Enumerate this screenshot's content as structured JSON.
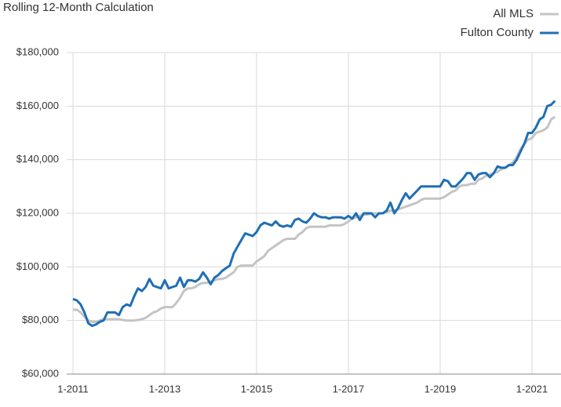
{
  "chart_data": {
    "type": "line",
    "title": "Rolling 12-Month Calculation",
    "categories": [
      "1-2011",
      null,
      null,
      null,
      null,
      null,
      null,
      null,
      null,
      null,
      null,
      null,
      null,
      null,
      null,
      null,
      null,
      null,
      null,
      null,
      null,
      null,
      null,
      null,
      "1-2013",
      null,
      null,
      null,
      null,
      null,
      null,
      null,
      null,
      null,
      null,
      null,
      null,
      null,
      null,
      null,
      null,
      null,
      null,
      null,
      null,
      null,
      null,
      null,
      "1-2015",
      null,
      null,
      null,
      null,
      null,
      null,
      null,
      null,
      null,
      null,
      null,
      null,
      null,
      null,
      null,
      null,
      null,
      null,
      null,
      null,
      null,
      null,
      null,
      "1-2017",
      null,
      null,
      null,
      null,
      null,
      null,
      null,
      null,
      null,
      null,
      null,
      null,
      null,
      null,
      null,
      null,
      null,
      null,
      null,
      null,
      null,
      null,
      null,
      "1-2019",
      null,
      null,
      null,
      null,
      null,
      null,
      null,
      null,
      null,
      null,
      null,
      null,
      null,
      null,
      null,
      null,
      null,
      null,
      null,
      null,
      null,
      null,
      null,
      "1-2021",
      null,
      null,
      null,
      null,
      null,
      null
    ],
    "series": [
      {
        "name": "All MLS",
        "color": "#c4c4c4",
        "values": [
          84000,
          84000,
          83000,
          81500,
          80000,
          79500,
          79500,
          80000,
          80500,
          80500,
          80500,
          80500,
          80500,
          80200,
          80000,
          80000,
          80000,
          80200,
          80500,
          81000,
          82000,
          83000,
          83500,
          84500,
          85000,
          85000,
          85000,
          86500,
          88500,
          91000,
          92000,
          92000,
          92500,
          93500,
          94000,
          94000,
          94500,
          95000,
          95500,
          95500,
          96000,
          97000,
          98000,
          100000,
          100500,
          100500,
          100500,
          100500,
          102000,
          103000,
          104000,
          106000,
          107000,
          108000,
          109000,
          110000,
          110500,
          110500,
          110500,
          112000,
          113000,
          114500,
          115000,
          115000,
          115000,
          115000,
          115000,
          115500,
          115500,
          115500,
          115500,
          116000,
          117000,
          118000,
          118500,
          119000,
          119500,
          119500,
          120000,
          120000,
          120000,
          120000,
          120500,
          121000,
          121000,
          121500,
          122000,
          122500,
          123000,
          123500,
          124000,
          125000,
          125500,
          125500,
          125500,
          125500,
          125500,
          126000,
          127000,
          128000,
          128500,
          130000,
          130500,
          130500,
          131000,
          131000,
          132500,
          133000,
          134000,
          134500,
          135000,
          135500,
          136500,
          137000,
          138000,
          139000,
          141000,
          144000,
          146000,
          147500,
          148000,
          150000,
          150500,
          151000,
          152000,
          155000,
          156000
        ]
      },
      {
        "name": "Fulton County",
        "color": "#1f6fb4",
        "values": [
          88000,
          87500,
          86000,
          83000,
          79000,
          78000,
          78500,
          79500,
          80000,
          83000,
          83000,
          83000,
          82000,
          85000,
          86000,
          85500,
          89000,
          92000,
          91000,
          92500,
          95500,
          93000,
          92500,
          92000,
          95000,
          92000,
          92500,
          93000,
          96000,
          92500,
          95000,
          95000,
          94500,
          95500,
          98000,
          96000,
          93500,
          96000,
          97000,
          98500,
          99500,
          100500,
          105000,
          107500,
          110000,
          112500,
          112000,
          111500,
          113000,
          115500,
          116500,
          116000,
          115500,
          117000,
          115500,
          115000,
          115500,
          115000,
          117500,
          118000,
          117000,
          116500,
          118000,
          120000,
          119000,
          118500,
          118500,
          118000,
          118500,
          118500,
          118500,
          118000,
          119000,
          118000,
          120000,
          117500,
          120000,
          120000,
          120000,
          118500,
          120000,
          120000,
          121000,
          124000,
          120000,
          122000,
          125000,
          127500,
          125500,
          127000,
          128500,
          130000,
          130000,
          130000,
          130000,
          130000,
          130000,
          132500,
          132000,
          130000,
          130000,
          131500,
          133000,
          135000,
          135000,
          132500,
          134500,
          135000,
          135000,
          133500,
          135000,
          137500,
          137000,
          137000,
          138000,
          138000,
          140000,
          143000,
          146000,
          150000,
          150000,
          152000,
          155000,
          156000,
          160000,
          160500,
          162000
        ]
      }
    ],
    "ylim": [
      60000,
      180000
    ],
    "yticks": [
      {
        "value": 60000,
        "label": "$60,000"
      },
      {
        "value": 80000,
        "label": "$80,000"
      },
      {
        "value": 100000,
        "label": "$100,000"
      },
      {
        "value": 120000,
        "label": "$120,000"
      },
      {
        "value": 140000,
        "label": "$140,000"
      },
      {
        "value": 160000,
        "label": "$160,000"
      },
      {
        "value": 180000,
        "label": "$180,000"
      }
    ],
    "grid": true,
    "legend": "top-right"
  }
}
